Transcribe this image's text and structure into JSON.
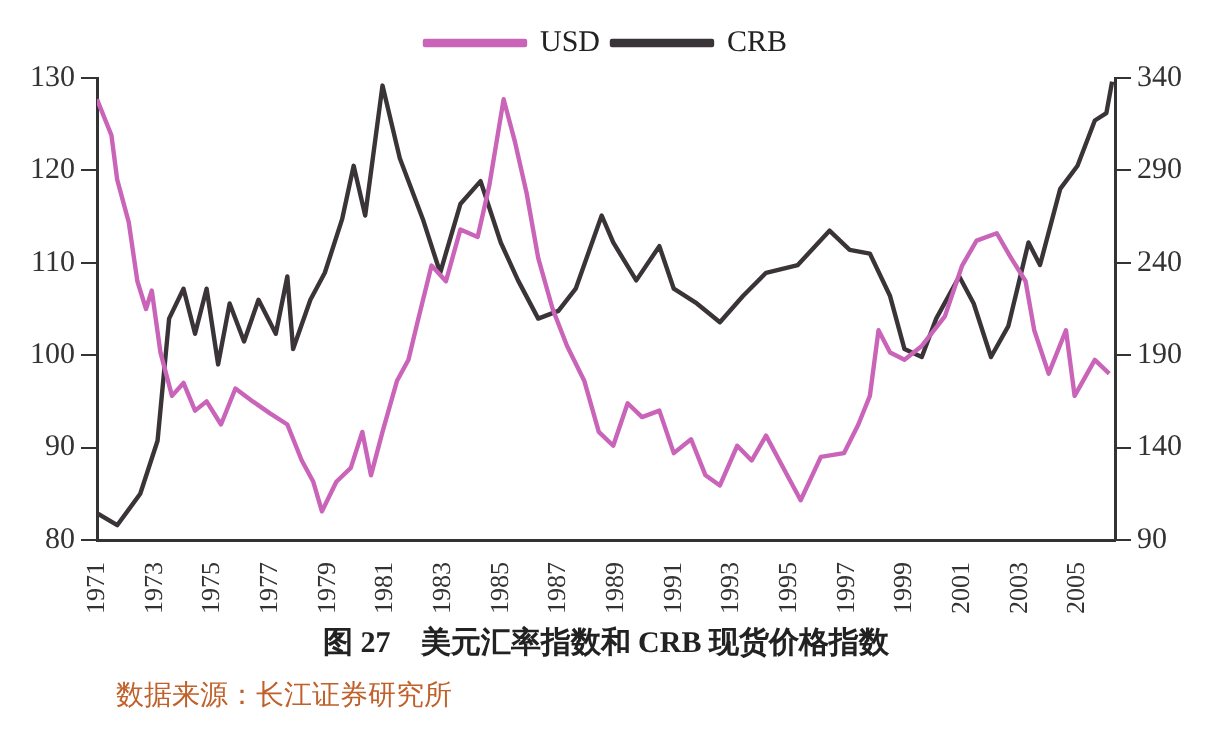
{
  "chart_data": {
    "type": "line",
    "title": "图 27　美元汇率指数和 CRB 现货价格指数",
    "annotations": [
      "数据来源：长江证券研究所"
    ],
    "xlim": [
      1971,
      2006.3
    ],
    "xticks": [
      1971,
      1973,
      1975,
      1977,
      1979,
      1981,
      1983,
      1985,
      1987,
      1989,
      1991,
      1993,
      1995,
      1997,
      1999,
      2001,
      2003,
      2005
    ],
    "ylim": [
      80,
      130
    ],
    "yticks": [
      80,
      90,
      100,
      110,
      120,
      130
    ],
    "y2lim": [
      90,
      340
    ],
    "y2ticks": [
      90,
      140,
      190,
      240,
      290,
      340
    ],
    "legend": "top",
    "grid": false,
    "marker": "none",
    "line_style": "solid",
    "series": [
      {
        "name": "USD",
        "color": "#c964b9",
        "x": [
          1971.0,
          1971.5,
          1971.7,
          1972.1,
          1972.4,
          1972.7,
          1972.9,
          1973.2,
          1973.6,
          1974.0,
          1974.4,
          1974.8,
          1975.3,
          1975.8,
          1976.4,
          1977.0,
          1977.6,
          1978.1,
          1978.5,
          1978.8,
          1979.3,
          1979.8,
          1980.2,
          1980.5,
          1980.9,
          1981.4,
          1981.8,
          1982.1,
          1982.6,
          1983.1,
          1983.6,
          1984.2,
          1984.6,
          1985.1,
          1985.5,
          1985.9,
          1986.3,
          1986.8,
          1987.3,
          1987.9,
          1988.4,
          1988.9,
          1989.4,
          1989.9,
          1990.5,
          1991.0,
          1991.6,
          1992.1,
          1992.6,
          1993.2,
          1993.7,
          1994.2,
          1994.8,
          1995.4,
          1996.1,
          1996.9,
          1997.4,
          1997.8,
          1998.1,
          1998.5,
          1999.0,
          1999.6,
          2000.4,
          2001.0,
          2001.5,
          2002.2,
          2002.7,
          2003.2,
          2003.5,
          2004.0,
          2004.6,
          2004.9,
          2005.6,
          2006.1
        ],
        "values": [
          127.7,
          123.8,
          119,
          114.4,
          108,
          105,
          107,
          100.3,
          95.6,
          97,
          94,
          95,
          92.5,
          96.4,
          95,
          93.7,
          92.5,
          88.6,
          86.3,
          83.1,
          86.3,
          87.8,
          91.7,
          87,
          91.7,
          97.2,
          99.5,
          103.4,
          109.7,
          108,
          113.6,
          112.8,
          118.3,
          127.7,
          123,
          117.5,
          110.5,
          105,
          101,
          97.2,
          91.7,
          90.2,
          94.8,
          93.3,
          94,
          89.4,
          90.9,
          87,
          85.9,
          90.2,
          88.6,
          91.3,
          87.8,
          84.3,
          89,
          89.4,
          92.5,
          95.6,
          102.7,
          100.3,
          99.5,
          101,
          104.2,
          109.7,
          112.4,
          113.2,
          110.5,
          108,
          102.7,
          98,
          102.7,
          95.6,
          99.5,
          98
        ]
      },
      {
        "name": "CRB",
        "color": "#3a3438",
        "axis": "y2",
        "x": [
          1971.0,
          1971.7,
          1972.5,
          1973.1,
          1973.5,
          1974.0,
          1974.4,
          1974.8,
          1975.2,
          1975.6,
          1976.1,
          1976.6,
          1977.2,
          1977.6,
          1977.8,
          1978.4,
          1978.9,
          1979.5,
          1979.9,
          1980.3,
          1980.9,
          1981.5,
          1982.3,
          1982.9,
          1983.6,
          1984.3,
          1985.0,
          1985.6,
          1986.3,
          1987.0,
          1987.6,
          1988.5,
          1988.9,
          1989.7,
          1990.5,
          1991.0,
          1991.8,
          1992.6,
          1993.4,
          1994.2,
          1995.3,
          1996.4,
          1997.1,
          1997.8,
          1998.5,
          1999.0,
          1999.6,
          2000.1,
          2000.9,
          2001.4,
          2002.0,
          2002.6,
          2003.3,
          2003.7,
          2004.4,
          2005.0,
          2005.6,
          2006.0,
          2006.2
        ],
        "values": [
          104.5,
          98,
          115,
          143.7,
          209.8,
          226,
          201.6,
          226,
          185,
          218,
          197.4,
          220,
          201.6,
          232.6,
          193.3,
          220,
          234.6,
          263.6,
          292.5,
          265.6,
          335.9,
          296.6,
          263.6,
          234.6,
          271.8,
          284.2,
          251,
          230.5,
          209.8,
          214,
          226,
          265.6,
          251,
          230.5,
          249,
          226,
          218,
          207.8,
          222,
          234.6,
          238.8,
          257.4,
          247,
          245,
          222,
          193.3,
          189,
          209.8,
          232.6,
          218,
          189,
          205.7,
          251,
          238.8,
          280,
          292.5,
          317,
          321,
          338
        ]
      }
    ]
  }
}
